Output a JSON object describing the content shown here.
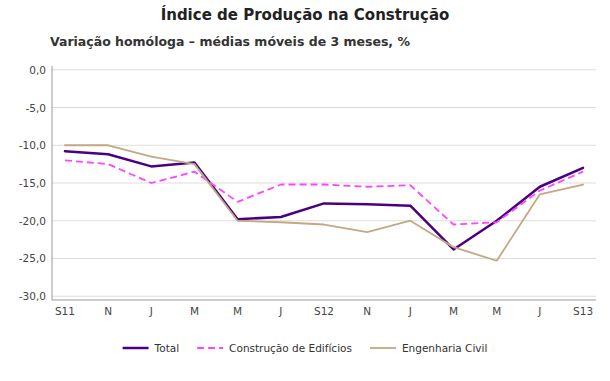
{
  "chart_data": {
    "type": "line",
    "title": "Índice de Produção na Construção",
    "subtitle": "Variação homóloga – médias móveis de 3 meses, %",
    "categories": [
      "S11",
      "N",
      "J",
      "M",
      "M",
      "J",
      "S12",
      "N",
      "J",
      "M",
      "M",
      "J",
      "S13"
    ],
    "ylim": [
      -30.5,
      0.5
    ],
    "yticks": [
      {
        "value": 0.0,
        "label": "0,0"
      },
      {
        "value": -5.0,
        "label": "-5,0"
      },
      {
        "value": -10.0,
        "label": "-10,0"
      },
      {
        "value": -15.0,
        "label": "-15,0"
      },
      {
        "value": -20.0,
        "label": "-20,0"
      },
      {
        "value": -25.0,
        "label": "-25,0"
      },
      {
        "value": -30.0,
        "label": "-30,0"
      }
    ],
    "grid": true,
    "legend": "bottom",
    "series": [
      {
        "name": "Total",
        "color": "#4B0082",
        "line_style": "solid",
        "values": [
          -10.8,
          -11.2,
          -12.8,
          -12.3,
          -19.8,
          -19.5,
          -17.7,
          -17.8,
          -18.0,
          -23.8,
          -20.0,
          -15.5,
          -13.0
        ]
      },
      {
        "name": "Construção de Edifícios",
        "color": "#FF44FF",
        "line_style": "dashed",
        "values": [
          -12.0,
          -12.5,
          -15.0,
          -13.5,
          -17.5,
          -15.2,
          -15.2,
          -15.5,
          -15.3,
          -20.5,
          -20.2,
          -16.0,
          -13.5
        ]
      },
      {
        "name": "Engenharia Civil",
        "color": "#C4A882",
        "line_style": "solid",
        "values": [
          -10.0,
          -10.0,
          -11.5,
          -12.5,
          -20.0,
          -20.2,
          -20.5,
          -21.5,
          -20.0,
          -23.5,
          -25.3,
          -16.5,
          -15.2
        ]
      }
    ]
  }
}
